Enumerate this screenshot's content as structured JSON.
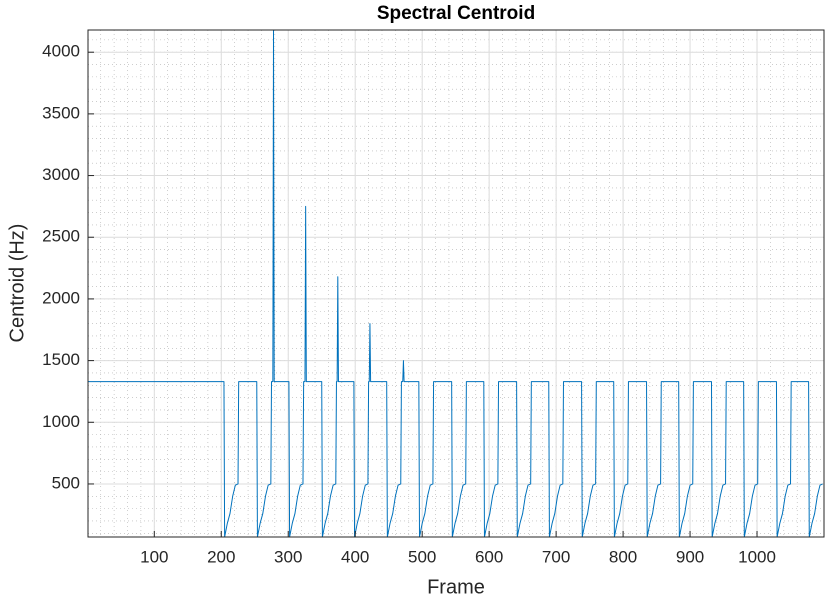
{
  "chart_data": {
    "type": "line",
    "title": "Spectral Centroid",
    "x_label": "Frame",
    "y_label": "Centroid (Hz)",
    "color": "#0072bd",
    "grid": true,
    "minor_grid": true,
    "xlim": [
      1,
      1100
    ],
    "ylim": [
      70,
      4180
    ],
    "xticks": [
      100,
      200,
      300,
      400,
      500,
      600,
      700,
      800,
      900,
      1000
    ],
    "yticks": [
      500,
      1000,
      1500,
      2000,
      2500,
      3000,
      3500,
      4000
    ],
    "x": [
      1,
      204,
      205,
      209,
      213,
      217,
      221,
      225,
      226,
      253,
      254,
      258,
      262,
      266,
      270,
      274,
      275,
      277,
      278,
      279,
      301,
      302,
      306,
      310,
      314,
      318,
      322,
      323,
      325,
      326,
      327,
      350,
      351,
      355,
      359,
      363,
      367,
      371,
      372,
      373,
      374,
      375,
      398,
      399,
      403,
      407,
      411,
      415,
      419,
      420,
      421,
      422,
      423,
      447,
      448,
      452,
      456,
      460,
      464,
      468,
      469,
      471,
      472,
      473,
      495,
      496,
      500,
      504,
      508,
      512,
      516,
      517,
      544,
      545,
      549,
      553,
      557,
      561,
      565,
      566,
      592,
      593,
      597,
      601,
      605,
      609,
      613,
      614,
      641,
      642,
      646,
      650,
      654,
      658,
      662,
      663,
      689,
      690,
      694,
      698,
      702,
      706,
      710,
      711,
      738,
      739,
      743,
      747,
      751,
      755,
      759,
      760,
      786,
      787,
      791,
      795,
      799,
      803,
      807,
      808,
      835,
      836,
      840,
      844,
      848,
      852,
      856,
      857,
      883,
      884,
      888,
      892,
      896,
      900,
      904,
      905,
      932,
      933,
      937,
      941,
      945,
      949,
      953,
      954,
      980,
      981,
      985,
      989,
      993,
      997,
      1001,
      1002,
      1029,
      1030,
      1034,
      1038,
      1042,
      1046,
      1050,
      1051,
      1077,
      1078,
      1082,
      1086,
      1090,
      1094,
      1098
    ],
    "values": [
      1330,
      1330,
      70,
      180,
      260,
      400,
      490,
      500,
      1330,
      1330,
      70,
      180,
      260,
      400,
      490,
      500,
      1330,
      1330,
      4180,
      1330,
      1330,
      70,
      180,
      260,
      400,
      490,
      500,
      1330,
      1330,
      2750,
      1330,
      1330,
      70,
      180,
      260,
      400,
      490,
      500,
      1330,
      1330,
      2180,
      1330,
      1330,
      70,
      180,
      260,
      400,
      490,
      500,
      1330,
      1330,
      1800,
      1330,
      1330,
      70,
      180,
      260,
      400,
      490,
      500,
      1330,
      1330,
      1500,
      1330,
      1330,
      70,
      180,
      260,
      400,
      490,
      500,
      1330,
      1330,
      70,
      180,
      260,
      400,
      490,
      500,
      1330,
      1330,
      70,
      180,
      260,
      400,
      490,
      500,
      1330,
      1330,
      70,
      180,
      260,
      400,
      490,
      500,
      1330,
      1330,
      70,
      180,
      260,
      400,
      490,
      500,
      1330,
      1330,
      70,
      180,
      260,
      400,
      490,
      500,
      1330,
      1330,
      70,
      180,
      260,
      400,
      490,
      500,
      1330,
      1330,
      70,
      180,
      260,
      400,
      490,
      500,
      1330,
      1330,
      70,
      180,
      260,
      400,
      490,
      500,
      1330,
      1330,
      70,
      180,
      260,
      400,
      490,
      500,
      1330,
      1330,
      70,
      180,
      260,
      400,
      490,
      500,
      1330,
      1330,
      70,
      180,
      260,
      400,
      490,
      500,
      1330,
      1330,
      70,
      180,
      260,
      400,
      490,
      500
    ]
  }
}
